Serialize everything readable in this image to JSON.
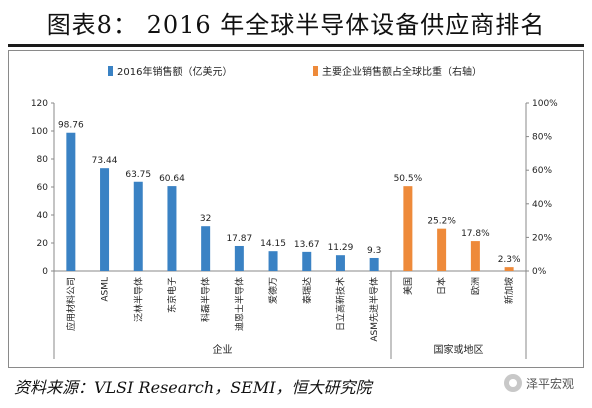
{
  "page": {
    "title": "图表8：  2016 年全球半导体设备供应商排名",
    "source": "资料来源：VLSI Research，SEMI，恒大研究院",
    "watermark": "泽平宏观"
  },
  "chart_data": {
    "type": "bar",
    "legend_placement": "top",
    "grid": false,
    "y_left": {
      "ticks": [
        0,
        20,
        40,
        60,
        80,
        100,
        120
      ],
      "ylim": [
        0,
        120
      ]
    },
    "y_right": {
      "ticks": [
        "0%",
        "20%",
        "40%",
        "60%",
        "80%",
        "100%"
      ],
      "ylim": [
        0,
        100
      ]
    },
    "series": [
      {
        "name": "2016年销售额（亿美元）",
        "color": "#3a82c4",
        "axis": "left",
        "group_label": "企业",
        "categories": [
          "应用材料公司",
          "ASML",
          "泛林半导体",
          "东京电子",
          "科磊半导体",
          "迪恩士半导体",
          "爱德万",
          "泰瑞达",
          "日立高新技术",
          "ASM先进半导体"
        ],
        "values": [
          98.76,
          73.44,
          63.75,
          60.64,
          32,
          17.87,
          14.15,
          13.67,
          11.29,
          9.3
        ],
        "data_labels": [
          "98.76",
          "73.44",
          "63.75",
          "60.64",
          "32",
          "17.87",
          "14.15",
          "13.67",
          "11.29",
          "9.3"
        ]
      },
      {
        "name": "主要企业销售额占全球比重（右轴）",
        "color": "#ee8a3a",
        "axis": "right",
        "group_label": "国家或地区",
        "categories": [
          "美国",
          "日本",
          "欧洲",
          "新加坡"
        ],
        "values": [
          50.5,
          25.2,
          17.8,
          2.3
        ],
        "data_labels": [
          "50.5%",
          "25.2%",
          "17.8%",
          "2.3%"
        ]
      }
    ]
  }
}
